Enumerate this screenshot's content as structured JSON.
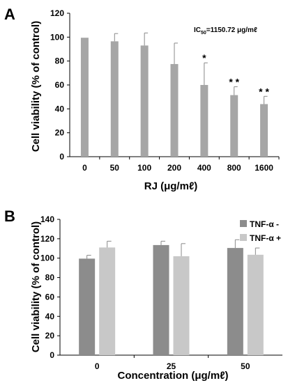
{
  "panels": [
    "A",
    "B"
  ],
  "chart_data": [
    {
      "type": "bar",
      "panel": "A",
      "categories": [
        "0",
        "50",
        "100",
        "200",
        "400",
        "800",
        "1600"
      ],
      "values": [
        99.5,
        96.5,
        93,
        77.5,
        60,
        51.5,
        44
      ],
      "errors": [
        0.5,
        6.5,
        10.5,
        17.5,
        18.5,
        7,
        6.5
      ],
      "significance": [
        "",
        "",
        "",
        "",
        "*",
        "**",
        "**"
      ],
      "ylabel": "Cell viability (% of control)",
      "xlabel": "RJ (μg/mℓ)",
      "ylim": [
        0,
        120
      ],
      "yticks": [
        0,
        20,
        40,
        60,
        80,
        100,
        120
      ],
      "annotation": {
        "prefix": "IC",
        "sub": "50",
        "suffix": "=1150.72 μg/mℓ"
      },
      "colors": {
        "bar": "#a6a6a6"
      },
      "grid": false
    },
    {
      "type": "bar",
      "panel": "B",
      "categories": [
        "0",
        "25",
        "50"
      ],
      "series": [
        {
          "name": "TNF-α -",
          "values": [
            99.5,
            113.5,
            110.5
          ],
          "errors": [
            3.5,
            4,
            8.5
          ],
          "color": "#8c8c8c"
        },
        {
          "name": "TNF-α +",
          "values": [
            111,
            102,
            103.5
          ],
          "errors": [
            6.5,
            13,
            7
          ],
          "color": "#c8c8c8"
        }
      ],
      "ylabel": "Cell viability (% of control)",
      "xlabel": "Concentration (μg/mℓ)",
      "ylim": [
        0,
        140
      ],
      "yticks": [
        0,
        20,
        40,
        60,
        80,
        100,
        120,
        140
      ],
      "legend_position": "top-right",
      "grid": false
    }
  ]
}
